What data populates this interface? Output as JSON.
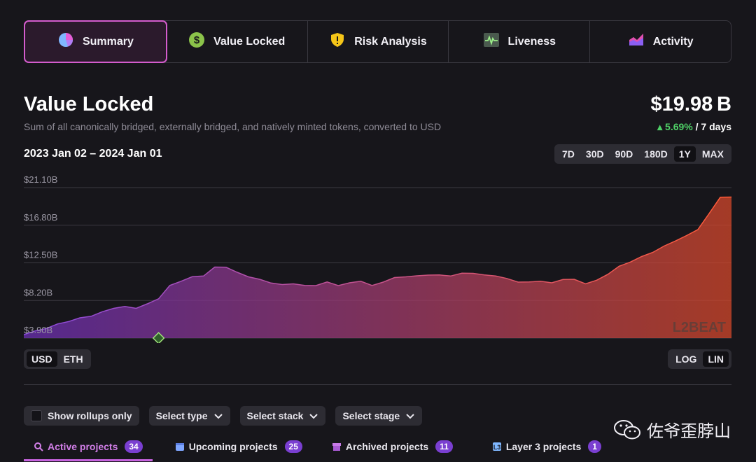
{
  "tabs": [
    {
      "label": "Summary",
      "icon": "pie-chart-icon",
      "active": true
    },
    {
      "label": "Value Locked",
      "icon": "dollar-icon",
      "active": false
    },
    {
      "label": "Risk Analysis",
      "icon": "shield-warning-icon",
      "active": false
    },
    {
      "label": "Liveness",
      "icon": "pulse-icon",
      "active": false
    },
    {
      "label": "Activity",
      "icon": "activity-chart-icon",
      "active": false
    }
  ],
  "header": {
    "title": "Value Locked",
    "subtitle": "Sum of all canonically bridged, externally bridged, and natively minted tokens, converted to USD",
    "value": "$19.98 B",
    "change_pct": "5.69%",
    "change_period": "/ 7 days",
    "date_range": "2023 Jan 02 – 2024 Jan 01"
  },
  "ranges": [
    "7D",
    "30D",
    "90D",
    "180D",
    "1Y",
    "MAX"
  ],
  "selected_range": "1Y",
  "currency_toggle": {
    "options": [
      "USD",
      "ETH"
    ],
    "selected": "USD"
  },
  "scale_toggle": {
    "options": [
      "LOG",
      "LIN"
    ],
    "selected": "LIN"
  },
  "chart_data": {
    "type": "area",
    "y_tick_labels": [
      "$21.10B",
      "$16.80B",
      "$12.50B",
      "$8.20B",
      "$3.90B"
    ],
    "ylim": [
      3.9,
      21.1
    ],
    "x_start": "2023 Jan 02",
    "x_end": "2024 Jan 01",
    "colors": {
      "start": "#6a2fb3",
      "end": "#d4472a"
    },
    "values": [
      4.3,
      4.6,
      5.0,
      5.4,
      5.8,
      6.1,
      6.4,
      6.8,
      7.3,
      7.4,
      7.3,
      7.7,
      8.4,
      9.8,
      10.4,
      10.8,
      11.0,
      11.9,
      12.0,
      11.3,
      10.9,
      10.5,
      10.2,
      9.9,
      10.1,
      9.8,
      9.9,
      10.2,
      9.9,
      10.1,
      10.4,
      9.8,
      10.3,
      10.7,
      10.9,
      10.9,
      11.1,
      11.0,
      11.0,
      11.2,
      11.3,
      11.0,
      11.0,
      10.6,
      10.3,
      10.2,
      10.4,
      10.1,
      10.6,
      10.5,
      10.1,
      10.4,
      11.2,
      12.0,
      12.6,
      13.1,
      13.7,
      14.3,
      15.0,
      15.5,
      16.3,
      18.0,
      20.0,
      19.9
    ]
  },
  "chart_marker": {
    "label": "event-marker",
    "x_index": 12
  },
  "watermark_chart": "L2BEAT",
  "filters": {
    "rollups_only": "Show rollups only",
    "type": "Select type",
    "stack": "Select stack",
    "stage": "Select stage"
  },
  "project_tabs": [
    {
      "label": "Active projects",
      "count": "34",
      "active": true
    },
    {
      "label": "Upcoming projects",
      "count": "25",
      "active": false
    },
    {
      "label": "Archived projects",
      "count": "11",
      "active": false
    },
    {
      "label": "Layer 3 projects",
      "count": "1",
      "active": false
    }
  ],
  "wechat_watermark": "佐爷歪脖山"
}
